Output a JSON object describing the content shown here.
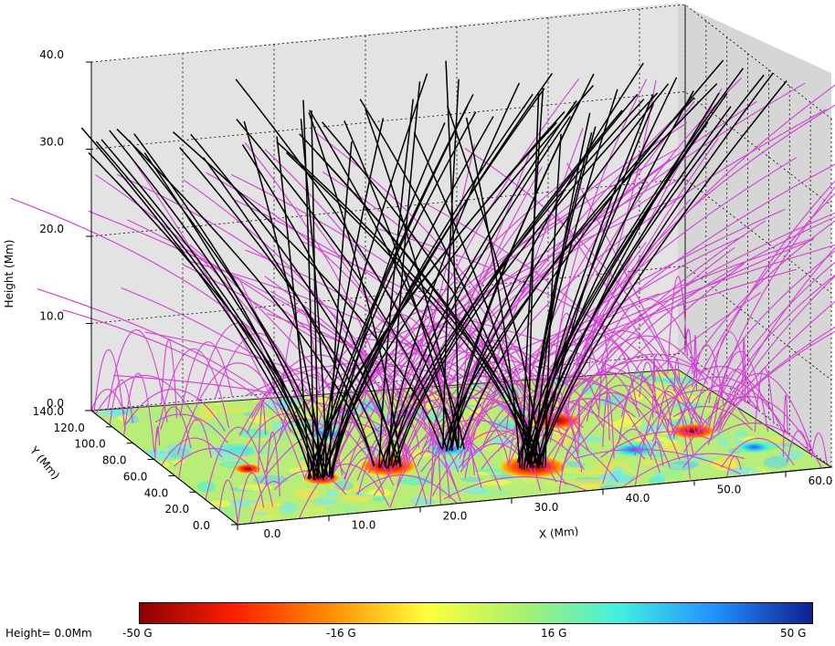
{
  "chart_data": {
    "type": "3d-field-line-plot",
    "axes": {
      "z": {
        "label": "Height (Mm)",
        "range": [
          0,
          40
        ],
        "ticks": [
          "0.0",
          "10.0",
          "20.0",
          "30.0",
          "40.0"
        ]
      },
      "y": {
        "label": "Y (Mm)",
        "range": [
          0,
          140
        ],
        "ticks": [
          "0.0",
          "20.0",
          "40.0",
          "60.0",
          "80.0",
          "100.0",
          "120.0",
          "140.0"
        ]
      },
      "x": {
        "label": "X (Mm)",
        "range": [
          0,
          65
        ],
        "ticks": [
          "0.0",
          "10.0",
          "20.0",
          "30.0",
          "40.0",
          "50.0",
          "60.0"
        ]
      }
    },
    "grid": true,
    "series": [
      {
        "name": "",
        "color": "#000000",
        "kind": "open field lines"
      },
      {
        "name": "",
        "color": "#d43fd4",
        "kind": "closed field lines"
      }
    ],
    "colorbar": {
      "range": [
        -50,
        50
      ],
      "ticks": [
        "-50 G",
        "-16 G",
        "16 G",
        "50 G"
      ],
      "colors": [
        "#8b0000",
        "#ff2000",
        "#ff9000",
        "#ffff40",
        "#a8f070",
        "#40f0e0",
        "#2090ff",
        "#102090"
      ]
    },
    "height_label": "Height= 0.0Mm"
  }
}
